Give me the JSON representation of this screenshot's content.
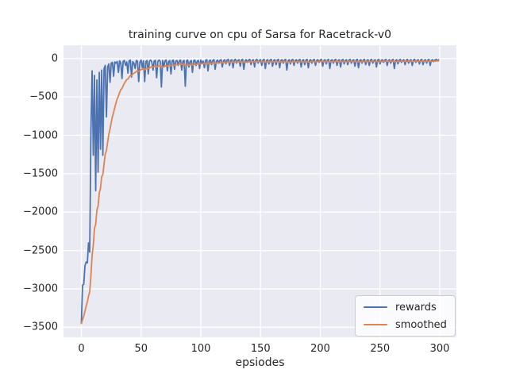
{
  "chart_data": {
    "type": "line",
    "title": "training curve on cpu of Sarsa for Racetrack-v0",
    "xlabel": "epsiodes",
    "ylabel": "",
    "x_description": "episode index, one point per episode from 0 to 299",
    "xlim": [
      -14.95,
      313.95
    ],
    "ylim": [
      -3630,
      173
    ],
    "x_ticks": [
      0,
      50,
      100,
      150,
      200,
      250,
      300
    ],
    "x_tick_labels": [
      "0",
      "50",
      "100",
      "150",
      "200",
      "250",
      "300"
    ],
    "y_ticks": [
      0,
      -500,
      -1000,
      -1500,
      -2000,
      -2500,
      -3000,
      -3500
    ],
    "y_tick_labels": [
      "0",
      "−500",
      "−1000",
      "−1500",
      "−2000",
      "−2500",
      "−3000",
      "−3500"
    ],
    "grid": true,
    "grid_color": "#ffffff",
    "plot_background": "#eaeaf2",
    "figure_background": "#ffffff",
    "text_color": "#262626",
    "legend_position": "lower right",
    "series": [
      {
        "name": "rewards",
        "color": "#4c72b0",
        "values": [
          -3450,
          -2950,
          -2940,
          -2700,
          -2650,
          -2660,
          -2400,
          -2520,
          -950,
          -160,
          -1260,
          -220,
          -1720,
          -280,
          -1480,
          -180,
          -1180,
          -150,
          -1260,
          -130,
          -90,
          -760,
          -110,
          -70,
          -310,
          -60,
          -50,
          -230,
          -45,
          -60,
          -40,
          -180,
          -30,
          -55,
          -260,
          -35,
          -25,
          -90,
          -45,
          -190,
          -30,
          -20,
          -240,
          -40,
          -60,
          -130,
          -25,
          -35,
          -300,
          -45,
          -20,
          -120,
          -30,
          -300,
          -40,
          -25,
          -200,
          -35,
          -20,
          -45,
          -150,
          -30,
          -25,
          -250,
          -40,
          -20,
          -35,
          -370,
          -25,
          -110,
          -30,
          -20,
          -160,
          -40,
          -25,
          -200,
          -30,
          -20,
          -140,
          -35,
          -25,
          -90,
          -30,
          -20,
          -150,
          -35,
          -25,
          -360,
          -30,
          -20,
          -110,
          -40,
          -25,
          -180,
          -30,
          -20,
          -90,
          -35,
          -25,
          -130,
          -20,
          -60,
          -35,
          -120,
          -25,
          -15,
          -160,
          -30,
          -20,
          -80,
          -25,
          -15,
          -140,
          -35,
          -20,
          -60,
          -25,
          -15,
          -110,
          -30,
          -15,
          -70,
          -20,
          -10,
          -90,
          -25,
          -15,
          -120,
          -20,
          -10,
          -60,
          -25,
          -15,
          -100,
          -20,
          -10,
          -140,
          -30,
          -15,
          -50,
          -20,
          -10,
          -80,
          -25,
          -15,
          -110,
          -20,
          -10,
          -60,
          -25,
          -15,
          -90,
          -20,
          -10,
          -130,
          -25,
          -15,
          -70,
          -20,
          -10,
          -100,
          -25,
          -15,
          -80,
          -20,
          -10,
          -120,
          -25,
          -15,
          -60,
          -20,
          -10,
          -150,
          -30,
          -15,
          -70,
          -20,
          -10,
          -90,
          -25,
          -15,
          -60,
          -20,
          -10,
          -110,
          -25,
          -15,
          -80,
          -20,
          -10,
          -120,
          -25,
          -15,
          -60,
          -20,
          -10,
          -90,
          -25,
          -15,
          -50,
          -20,
          -10,
          -100,
          -25,
          -15,
          -70,
          -20,
          -10,
          -130,
          -25,
          -15,
          -60,
          -20,
          -10,
          -90,
          -25,
          -15,
          -110,
          -20,
          -10,
          -70,
          -25,
          -15,
          -80,
          -20,
          -10,
          -60,
          -25,
          -15,
          -100,
          -20,
          -10,
          -120,
          -25,
          -15,
          -60,
          -20,
          -10,
          -80,
          -25,
          -15,
          -90,
          -20,
          -10,
          -60,
          -25,
          -15,
          -110,
          -20,
          -10,
          -70,
          -25,
          -15,
          -50,
          -20,
          -10,
          -90,
          -25,
          -15,
          -60,
          -20,
          -10,
          -130,
          -25,
          -15,
          -70,
          -20,
          -10,
          -50,
          -25,
          -15,
          -80,
          -20,
          -10,
          -60,
          -25,
          -15,
          -90,
          -20,
          -10,
          -50,
          -25,
          -15,
          -70,
          -20,
          -10,
          -80,
          -25,
          -15,
          -60,
          -20,
          -10,
          -90,
          -25,
          -15,
          -40,
          -20,
          -10,
          -30,
          -15
        ]
      },
      {
        "name": "smoothed",
        "color": "#dd8452",
        "derivation": "exponential moving average of rewards, alpha = 0.1",
        "values": [
          -3450,
          -3400,
          -3354,
          -3289,
          -3225,
          -3169,
          -3092,
          -3035,
          -2827,
          -2560,
          -2430,
          -2209,
          -2160,
          -1972,
          -1923,
          -1749,
          -1692,
          -1538,
          -1510,
          -1372,
          -1244,
          -1196,
          -1087,
          -985,
          -918,
          -832,
          -754,
          -702,
          -636,
          -578,
          -524,
          -490,
          -444,
          -405,
          -391,
          -355,
          -322,
          -299,
          -274,
          -266,
          -242,
          -220,
          -222,
          -204,
          -190,
          -184,
          -168,
          -155,
          -169,
          -157,
          -143,
          -141,
          -130,
          -147,
          -136,
          -125,
          -133,
          -123,
          -113,
          -106,
          -110,
          -102,
          -94,
          -110,
          -103,
          -95,
          -89,
          -117,
          -108,
          -108,
          -100,
          -92,
          -99,
          -93,
          -86,
          -97,
          -90,
          -83,
          -89,
          -84,
          -78,
          -79,
          -74,
          -69,
          -77,
          -73,
          -68,
          -97,
          -90,
          -83,
          -86,
          -81,
          -75,
          -86,
          -80,
          -74,
          -76,
          -72,
          -67,
          -73,
          -68,
          -67,
          -64,
          -70,
          -66,
          -61,
          -71,
          -67,
          -62,
          -64,
          -60,
          -56,
          -64,
          -61,
          -57,
          -57,
          -54,
          -50,
          -56,
          -53,
          -49,
          -51,
          -48,
          -44,
          -49,
          -47,
          -44,
          -52,
          -49,
          -45,
          -46,
          -44,
          -41,
          -47,
          -44,
          -41,
          -51,
          -49,
          -46,
          -46,
          -43,
          -40,
          -44,
          -42,
          -39,
          -46,
          -43,
          -40,
          -42,
          -40,
          -38,
          -43,
          -41,
          -38,
          -47,
          -45,
          -42,
          -45,
          -42,
          -39,
          -45,
          -43,
          -40,
          -44,
          -42,
          -39,
          -47,
          -45,
          -42,
          -44,
          -42,
          -38,
          -49,
          -47,
          -44,
          -47,
          -44,
          -41,
          -46,
          -44,
          -41,
          -43,
          -41,
          -38,
          -45,
          -43,
          -40,
          -44,
          -42,
          -39,
          -47,
          -45,
          -42,
          -44,
          -42,
          -39,
          -44,
          -42,
          -39,
          -40,
          -38,
          -35,
          -42,
          -40,
          -38,
          -41,
          -39,
          -36,
          -45,
          -43,
          -40,
          -42,
          -40,
          -37,
          -42,
          -40,
          -38,
          -45,
          -43,
          -40,
          -43,
          -41,
          -38,
          -42,
          -40,
          -37,
          -39,
          -38,
          -36,
          -42,
          -40,
          -37,
          -45,
          -43,
          -40,
          -42,
          -40,
          -37,
          -41,
          -39,
          -37,
          -42,
          -40,
          -37,
          -39,
          -38,
          -36,
          -43,
          -41,
          -38,
          -41,
          -39,
          -37,
          -38,
          -36,
          -33,
          -39,
          -38,
          -36,
          -38,
          -36,
          -33,
          -43,
          -41,
          -38,
          -41,
          -39,
          -36,
          -37,
          -36,
          -34,
          -39,
          -37,
          -34,
          -37,
          -36,
          -34,
          -40,
          -38,
          -35,
          -37,
          -36,
          -34,
          -38,
          -36,
          -33,
          -38,
          -37,
          -35,
          -38,
          -36,
          -33,
          -39,
          -38,
          -36,
          -36,
          -34,
          -32,
          -32,
          -30
        ]
      }
    ]
  }
}
